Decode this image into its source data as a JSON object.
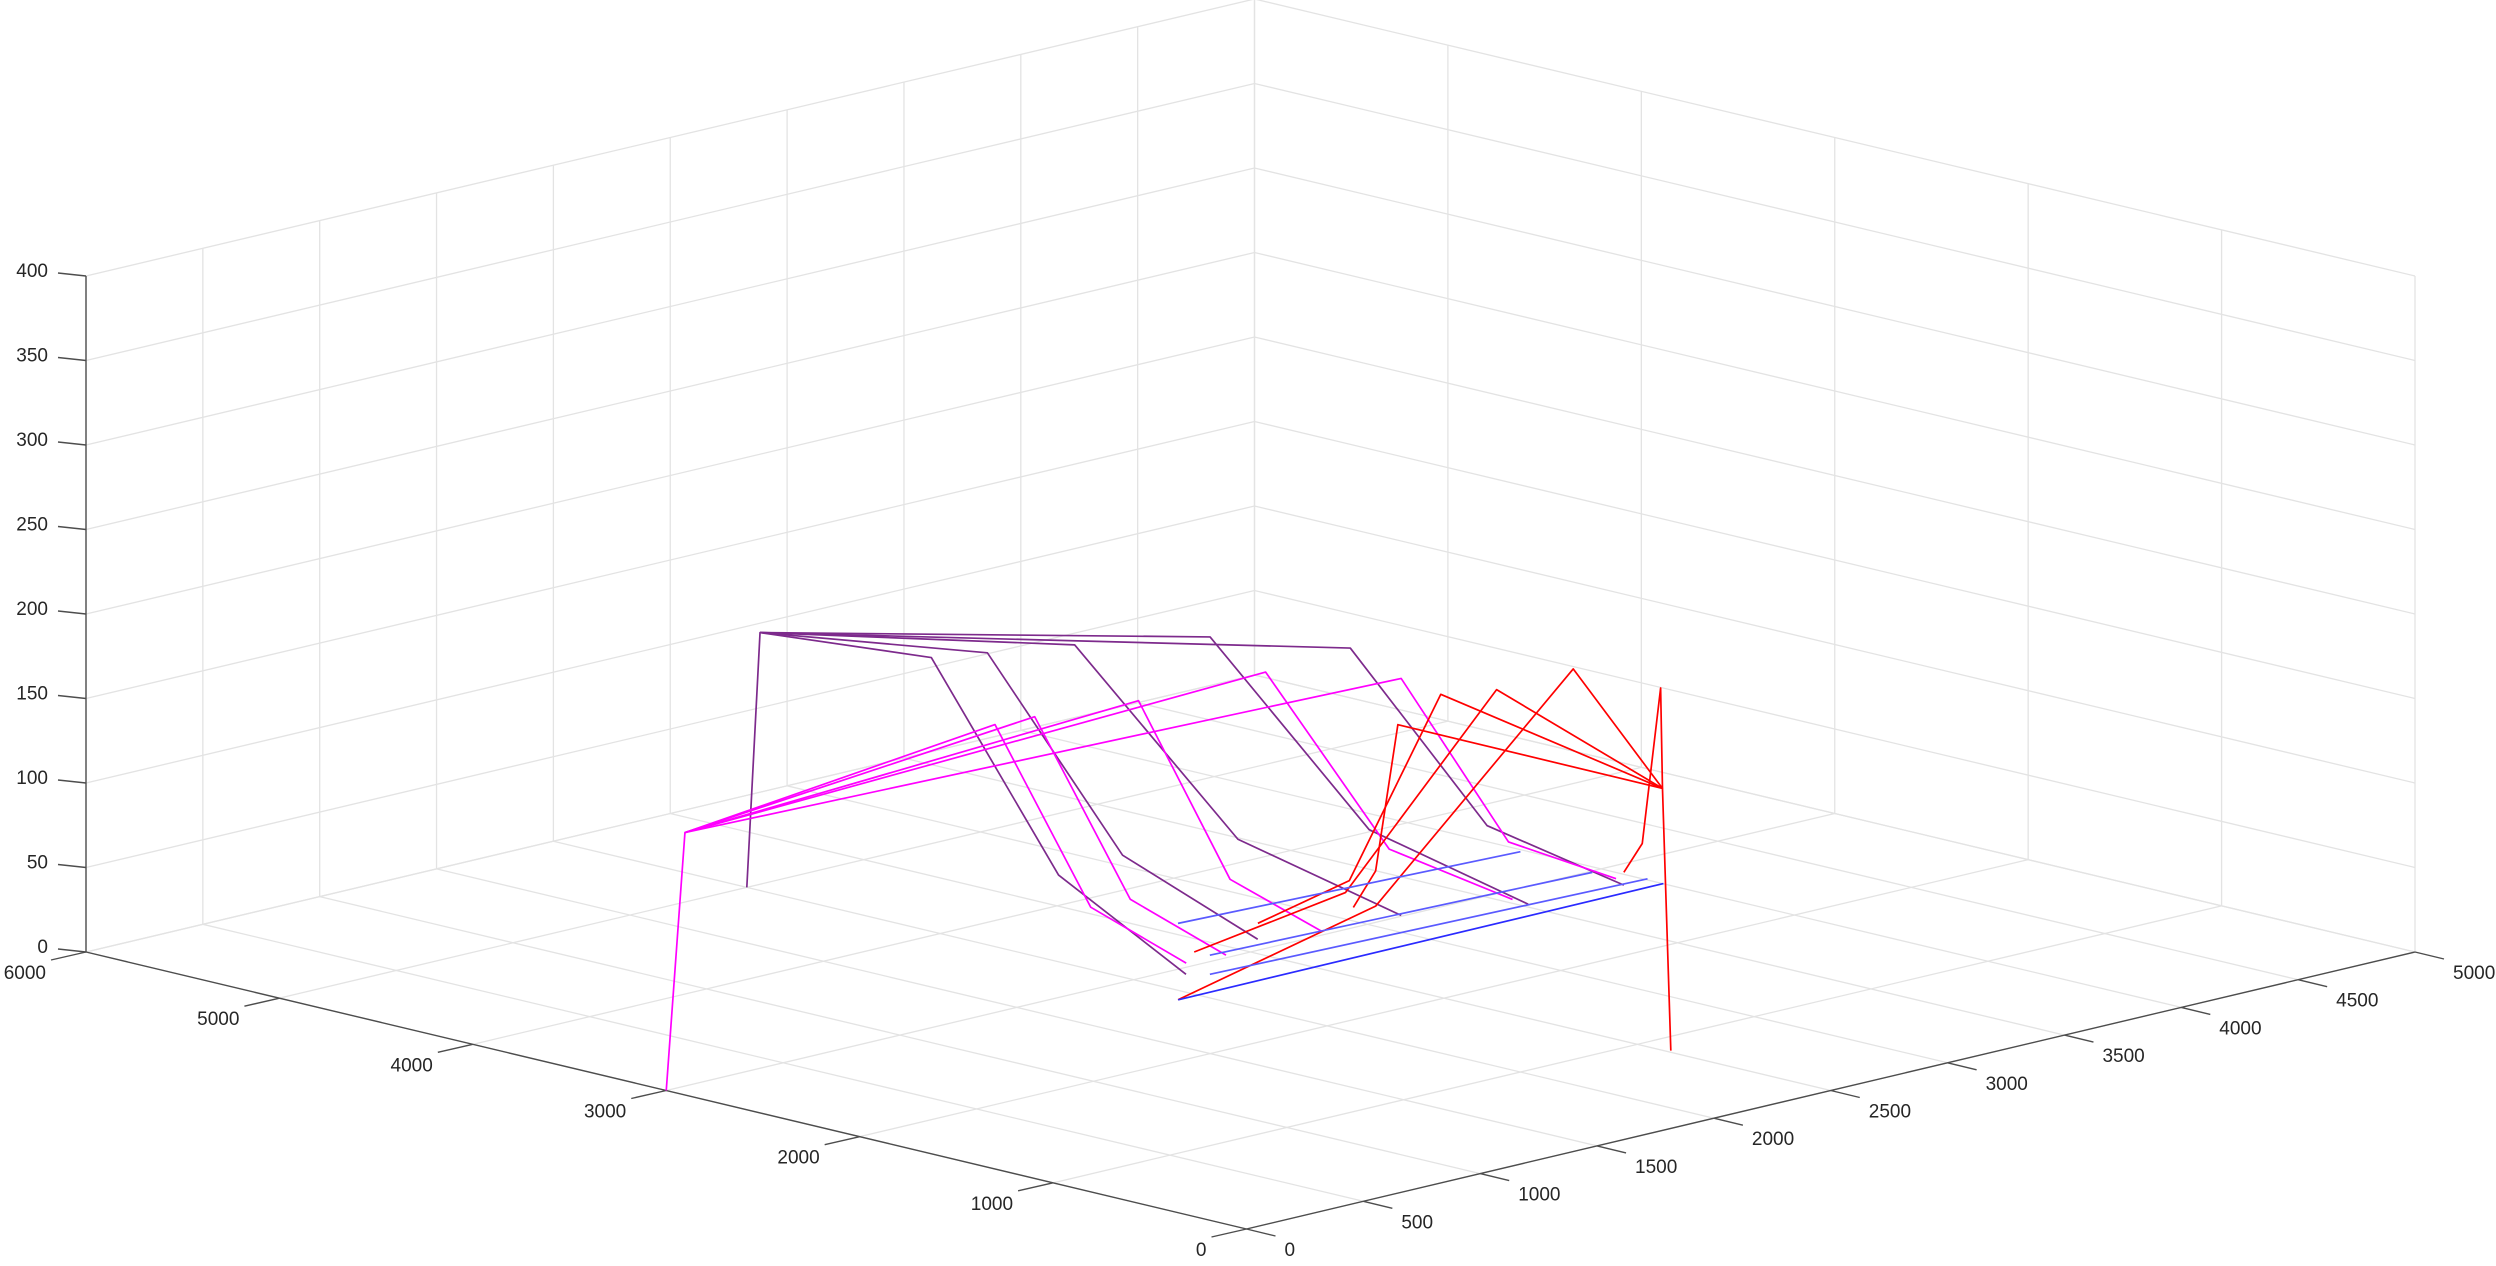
{
  "chart_data": {
    "type": "line3d",
    "xlim": [
      0,
      5000
    ],
    "ylim": [
      0,
      6000
    ],
    "zlim": [
      0,
      400
    ],
    "xticks": [
      0,
      500,
      1000,
      1500,
      2000,
      2500,
      3000,
      3500,
      4000,
      4500,
      5000
    ],
    "yticks": [
      0,
      1000,
      2000,
      3000,
      4000,
      5000,
      6000
    ],
    "zticks": [
      0,
      50,
      100,
      150,
      200,
      250,
      300,
      350,
      400
    ],
    "grid": true,
    "series": [
      {
        "color": "#7d2a8c",
        "x": [
          2000,
          2040,
          3244,
          3536,
          3827
        ],
        "y": [
          5000,
          4980,
          3383,
          3028,
          2673
        ],
        "z": [
          0,
          150,
          145,
          40,
          5
        ]
      },
      {
        "color": "#7d2a8c",
        "x": [
          2040,
          3043,
          3247,
          3450
        ],
        "y": [
          4980,
          3865,
          3289,
          2712
        ],
        "z": [
          150,
          145,
          40,
          5
        ]
      },
      {
        "color": "#7d2a8c",
        "x": [
          2040,
          2681,
          2879,
          3077
        ],
        "y": [
          4980,
          4128,
          3523,
          2918
        ],
        "z": [
          150,
          145,
          40,
          5
        ]
      },
      {
        "color": "#7d2a8c",
        "x": [
          2040,
          2422,
          2488,
          2554
        ],
        "y": [
          4980,
          4266,
          3647,
          3028
        ],
        "z": [
          150,
          145,
          40,
          5
        ]
      },
      {
        "color": "#7d2a8c",
        "x": [
          2040,
          2259,
          2172,
          2085
        ],
        "y": [
          4980,
          4359,
          3596,
          2832
        ],
        "z": [
          150,
          145,
          40,
          5
        ]
      },
      {
        "color": "#ff00ff",
        "x": [
          0,
          80,
          3004,
          3436,
          3868
        ],
        "y": [
          3000,
          3000,
          2830,
          2797,
          2763
        ],
        "z": [
          0,
          150,
          150,
          40,
          5
        ]
      },
      {
        "color": "#ff00ff",
        "x": [
          80,
          2770,
          3115,
          3459
        ],
        "y": [
          3000,
          3248,
          3026,
          2804
        ],
        "z": [
          150,
          150,
          40,
          5
        ]
      },
      {
        "color": "#ff00ff",
        "x": [
          80,
          2240,
          2502,
          2763
        ],
        "y": [
          3000,
          3265,
          3108,
          2950
        ],
        "z": [
          150,
          150,
          40,
          5
        ]
      },
      {
        "color": "#ff00ff",
        "x": [
          80,
          1873,
          2108,
          2343
        ],
        "y": [
          3000,
          3358,
          3148,
          2937
        ],
        "z": [
          150,
          150,
          40,
          5
        ]
      },
      {
        "color": "#ff00ff",
        "x": [
          80,
          1717,
          1952,
          2186
        ],
        "y": [
          3000,
          3375,
          3164,
          2953
        ],
        "z": [
          150,
          150,
          40,
          5
        ]
      },
      {
        "color": "#ff0000",
        "x": [
          2515,
          2500,
          2699,
          2269,
          1839
        ],
        "y": [
          845,
          870,
          1572,
          2074,
          2576
        ],
        "z": [
          0,
          155,
          200,
          60,
          5
        ]
      },
      {
        "color": "#ff0000",
        "x": [
          2500,
          2348,
          2326,
          2303
        ],
        "y": [
          870,
          1544,
          2299,
          3053
        ],
        "z": [
          155,
          200,
          60,
          5
        ]
      },
      {
        "color": "#ff0000",
        "x": [
          2500,
          2186,
          2442,
          2698
        ],
        "y": [
          870,
          1637,
          2419,
          3201
        ],
        "z": [
          155,
          200,
          60,
          5
        ]
      },
      {
        "color": "#ff0000",
        "x": [
          2500,
          2125,
          2586,
          3046
        ],
        "y": [
          870,
          1785,
          2457,
          3128
        ],
        "z": [
          155,
          180,
          60,
          5
        ]
      },
      {
        "color": "#ff0000",
        "x": [
          2500,
          2867,
          3405,
          3942
        ],
        "y": [
          870,
          1323,
          2068,
          2812
        ],
        "z": [
          155,
          190,
          60,
          5
        ]
      },
      {
        "color": "#2a2aff",
        "x": [
          1915,
          4002
        ],
        "y": [
          2667,
          2680
        ],
        "z": [
          0,
          0
        ]
      },
      {
        "color": "#5a5aff",
        "x": [
          2384,
          3950
        ],
        "y": [
          3070,
          2985
        ],
        "z": [
          0,
          0
        ]
      },
      {
        "color": "#5a5aff",
        "x": [
          2602,
          3982
        ],
        "y": [
          3498,
          3395
        ],
        "z": [
          0,
          0
        ]
      },
      {
        "color": "#5a5aff",
        "x": [
          2212,
          4011
        ],
        "y": [
          2862,
          2773
        ],
        "z": [
          0,
          0
        ]
      }
    ]
  }
}
